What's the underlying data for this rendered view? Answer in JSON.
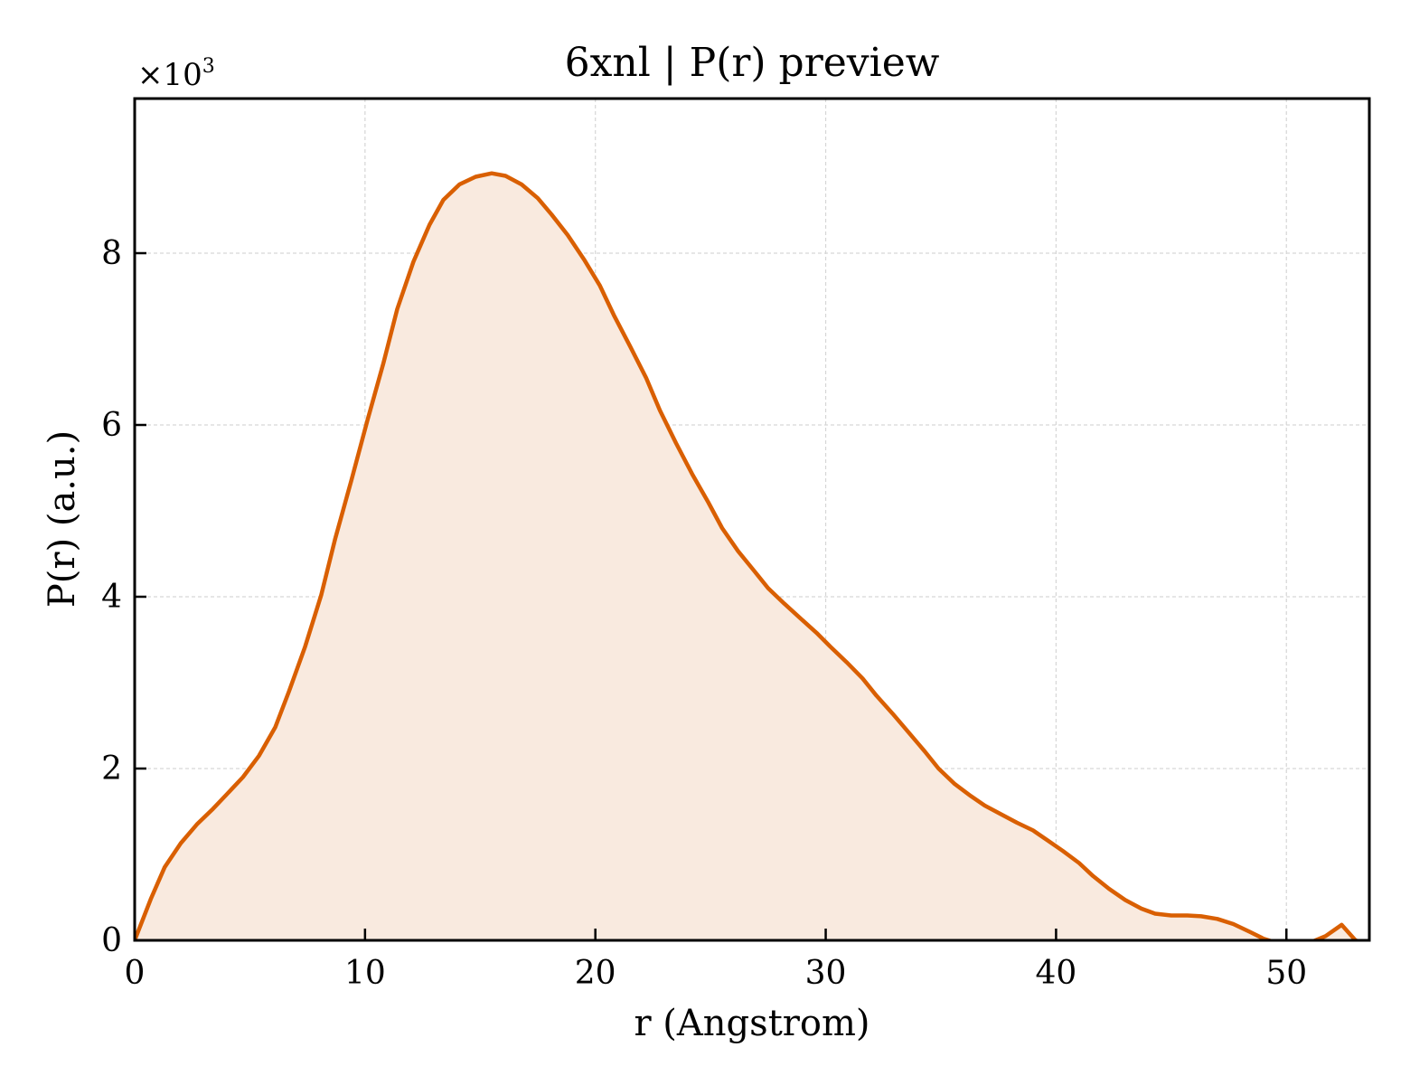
{
  "chart_data": {
    "type": "area",
    "title": "6xnl | P(r) preview",
    "xlabel": "r (Angstrom)",
    "ylabel": "P(r) (a.u.)",
    "y_multiplier_base": "×10",
    "y_multiplier_exp": "3",
    "xlim": [
      0,
      53.6
    ],
    "ylim": [
      0,
      9.8
    ],
    "x_ticks": [
      0,
      10,
      20,
      30,
      40,
      50
    ],
    "y_ticks": [
      0,
      2,
      4,
      6,
      8
    ],
    "grid": true,
    "line_color": "#d95f02",
    "fill_color": "#f9eadf",
    "series": [
      {
        "x": [
          0,
          0.7,
          1.3,
          2.0,
          2.7,
          3.4,
          4.0,
          4.7,
          5.4,
          6.1,
          6.7,
          7.4,
          8.1,
          8.7,
          9.4,
          10.1,
          10.8,
          11.4,
          12.1,
          12.8,
          13.4,
          14.1,
          14.8,
          15.5,
          16.1,
          16.8,
          17.5,
          18.1,
          18.8,
          19.5,
          20.2,
          20.8,
          21.5,
          22.2,
          22.8,
          23.5,
          24.2,
          24.9,
          25.5,
          26.2,
          26.9,
          27.5,
          28.2,
          28.9,
          29.6,
          30.2,
          30.9,
          31.6,
          32.2,
          32.9,
          33.6,
          34.3,
          34.9,
          35.6,
          36.3,
          36.9,
          37.6,
          38.3,
          39.0,
          39.6,
          40.3,
          41.0,
          41.6,
          42.3,
          43.0,
          43.7,
          44.3,
          45.0,
          45.7,
          46.3,
          47.0,
          47.7,
          48.4,
          49.0,
          49.7,
          50.4,
          51.0,
          51.7,
          52.4,
          53.0,
          53.6
        ],
        "y": [
          0,
          0.48,
          0.85,
          1.13,
          1.35,
          1.53,
          1.7,
          1.9,
          2.15,
          2.48,
          2.9,
          3.42,
          4.02,
          4.67,
          5.35,
          6.05,
          6.72,
          7.35,
          7.9,
          8.33,
          8.62,
          8.8,
          8.89,
          8.93,
          8.9,
          8.8,
          8.64,
          8.45,
          8.21,
          7.93,
          7.62,
          7.28,
          6.92,
          6.55,
          6.17,
          5.79,
          5.43,
          5.1,
          4.8,
          4.53,
          4.3,
          4.1,
          3.92,
          3.75,
          3.58,
          3.42,
          3.24,
          3.05,
          2.85,
          2.64,
          2.42,
          2.2,
          2.0,
          1.82,
          1.68,
          1.57,
          1.47,
          1.37,
          1.28,
          1.17,
          1.04,
          0.9,
          0.75,
          0.6,
          0.47,
          0.37,
          0.31,
          0.29,
          0.29,
          0.28,
          0.25,
          0.19,
          0.1,
          0.02,
          -0.04,
          -0.06,
          -0.03,
          0.05,
          0.18,
          0.0,
          -0.05
        ]
      }
    ]
  }
}
